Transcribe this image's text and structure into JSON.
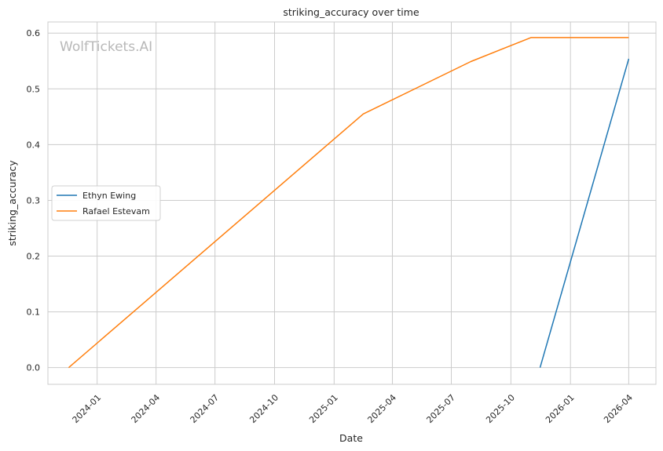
{
  "watermark": "WolfTickets.AI",
  "chart_data": {
    "type": "line",
    "title": "striking_accuracy over time",
    "xlabel": "Date",
    "ylabel": "striking_accuracy",
    "x_ticks": [
      "2024-01-01",
      "2024-04-01",
      "2024-07-01",
      "2024-10-01",
      "2025-01-01",
      "2025-04-01",
      "2025-07-01",
      "2025-10-01",
      "2026-01-01",
      "2026-04-01"
    ],
    "x_tick_labels": [
      "2024-01",
      "2024-04",
      "2024-07",
      "2024-10",
      "2025-01",
      "2025-04",
      "2025-07",
      "2025-10",
      "2026-01",
      "2026-04"
    ],
    "y_ticks": [
      0.0,
      0.1,
      0.2,
      0.3,
      0.4,
      0.5,
      0.6
    ],
    "y_tick_labels": [
      "0.0",
      "0.1",
      "0.2",
      "0.3",
      "0.4",
      "0.5",
      "0.6"
    ],
    "xlim": [
      "2023-10-17",
      "2026-05-13"
    ],
    "ylim": [
      -0.03,
      0.62
    ],
    "grid": true,
    "legend": "center-left",
    "series": [
      {
        "name": "Ethyn Ewing",
        "color": "#1f77b4",
        "points": [
          {
            "x": "2025-11-15",
            "y": 0.0
          },
          {
            "x": "2026-04-01",
            "y": 0.554
          }
        ]
      },
      {
        "name": "Rafael Estevam",
        "color": "#ff7f0e",
        "points": [
          {
            "x": "2023-11-18",
            "y": 0.0
          },
          {
            "x": "2025-02-15",
            "y": 0.455
          },
          {
            "x": "2025-07-31",
            "y": 0.549
          },
          {
            "x": "2025-11-01",
            "y": 0.592
          },
          {
            "x": "2026-04-01",
            "y": 0.592
          }
        ]
      }
    ]
  }
}
